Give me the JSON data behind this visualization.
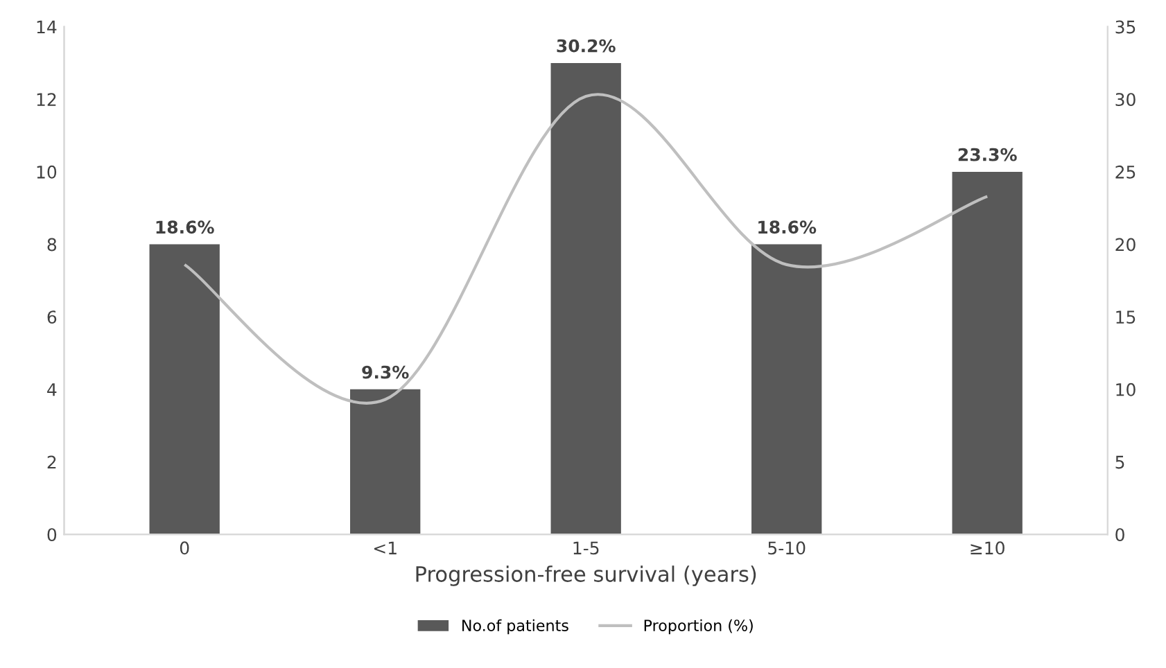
{
  "chart_data": {
    "type": "bar",
    "xlabel": "Progression-free survival (years)",
    "categories": [
      "0",
      "<1",
      "1-5",
      "5-10",
      "≥10"
    ],
    "series": [
      {
        "name": "No.of patients",
        "color": "#595959",
        "values": [
          8,
          4,
          13,
          8,
          10
        ]
      },
      {
        "name": "Proportion (%)",
        "type": "line",
        "axis": "y2",
        "color": "#bfbfbf",
        "values": [
          18.6,
          9.3,
          30.2,
          18.6,
          23.3
        ],
        "value_labels": [
          "18.6%",
          "9.3%",
          "30.2%",
          "18.6%",
          "23.3%"
        ]
      }
    ],
    "ylim": [
      0,
      14
    ],
    "yticks": [
      0,
      2,
      4,
      6,
      8,
      10,
      12,
      14
    ],
    "y2lim": [
      0,
      35
    ],
    "y2ticks": [
      0,
      5,
      10,
      15,
      20,
      25,
      30,
      35
    ],
    "grid": false,
    "legend": "bottom",
    "marker": "none",
    "line_style": "solid"
  }
}
